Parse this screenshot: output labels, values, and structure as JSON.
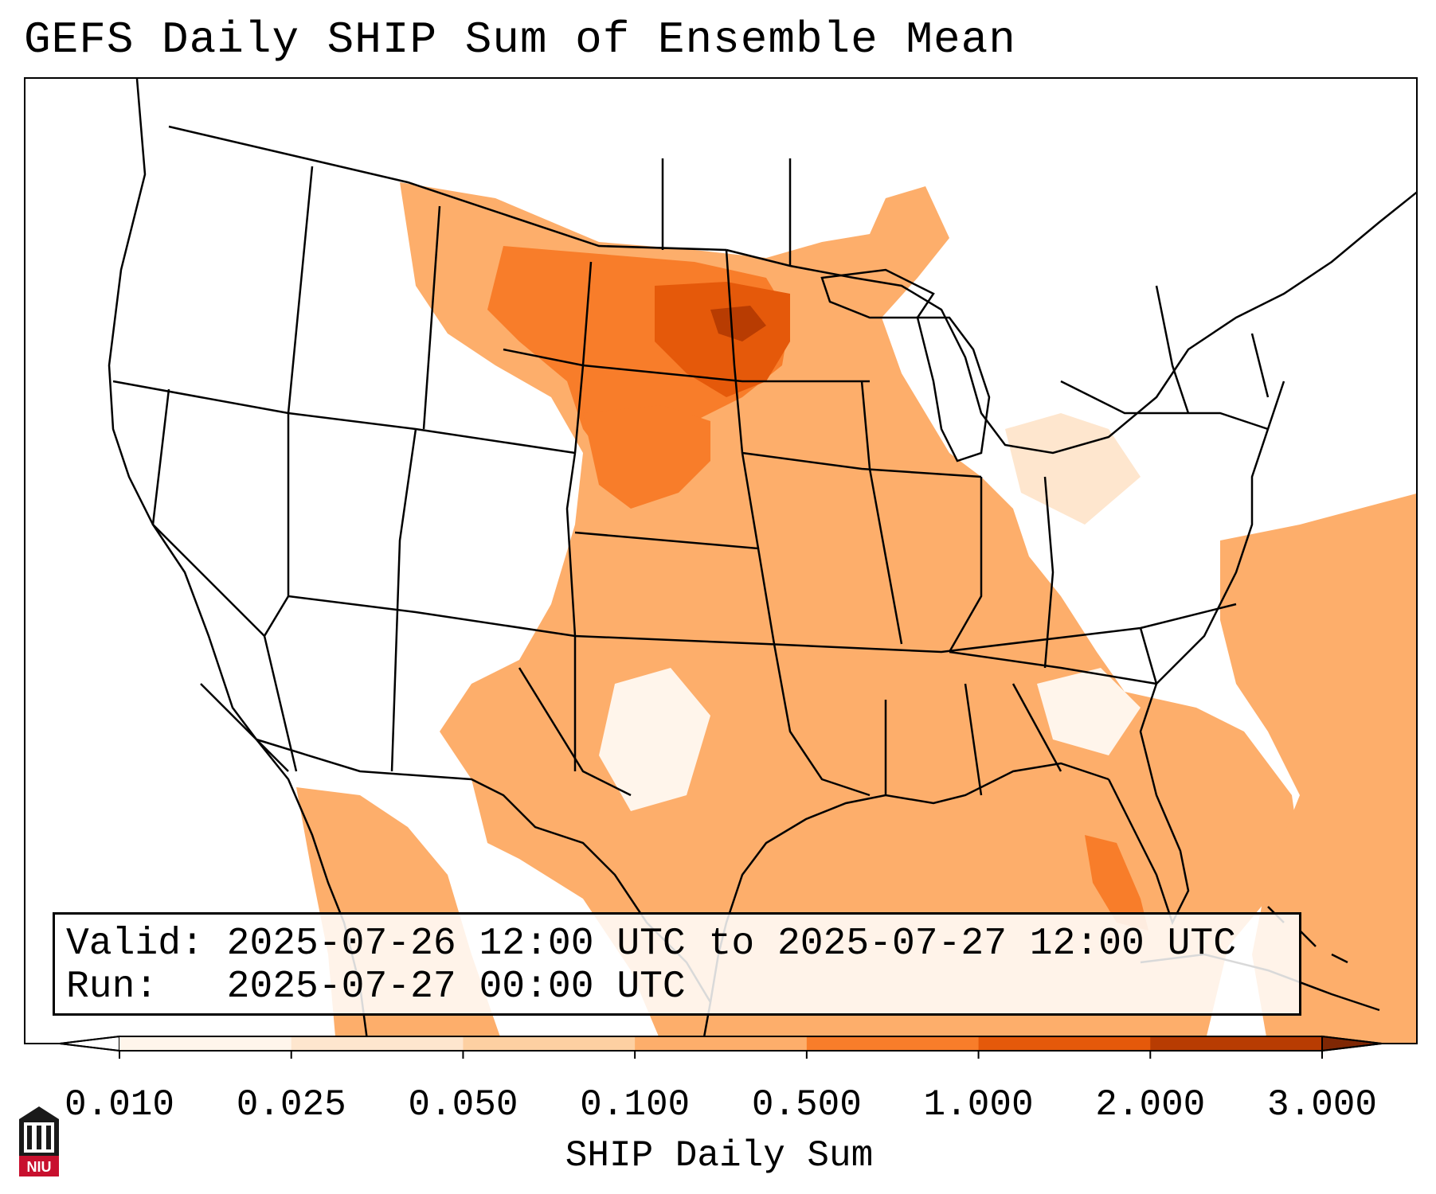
{
  "title": "GEFS Daily SHIP Sum of Ensemble Mean",
  "info": {
    "valid_line": "Valid: 2025-07-26 12:00 UTC to 2025-07-27 12:00 UTC",
    "run_line": "Run:   2025-07-27 00:00 UTC"
  },
  "colorbar": {
    "label": "SHIP Daily Sum",
    "ticks": [
      "0.010",
      "0.025",
      "0.050",
      "0.100",
      "0.500",
      "1.000",
      "2.000",
      "3.000"
    ],
    "colors": [
      "#fff5eb",
      "#fee6ce",
      "#fdd0a2",
      "#fdae6b",
      "#f87d2a",
      "#e5590a",
      "#b83c02"
    ],
    "under_color": "#ffffff",
    "over_color": "#7f2704"
  },
  "logo": {
    "text": "NIU",
    "color": "#c8102e"
  }
}
